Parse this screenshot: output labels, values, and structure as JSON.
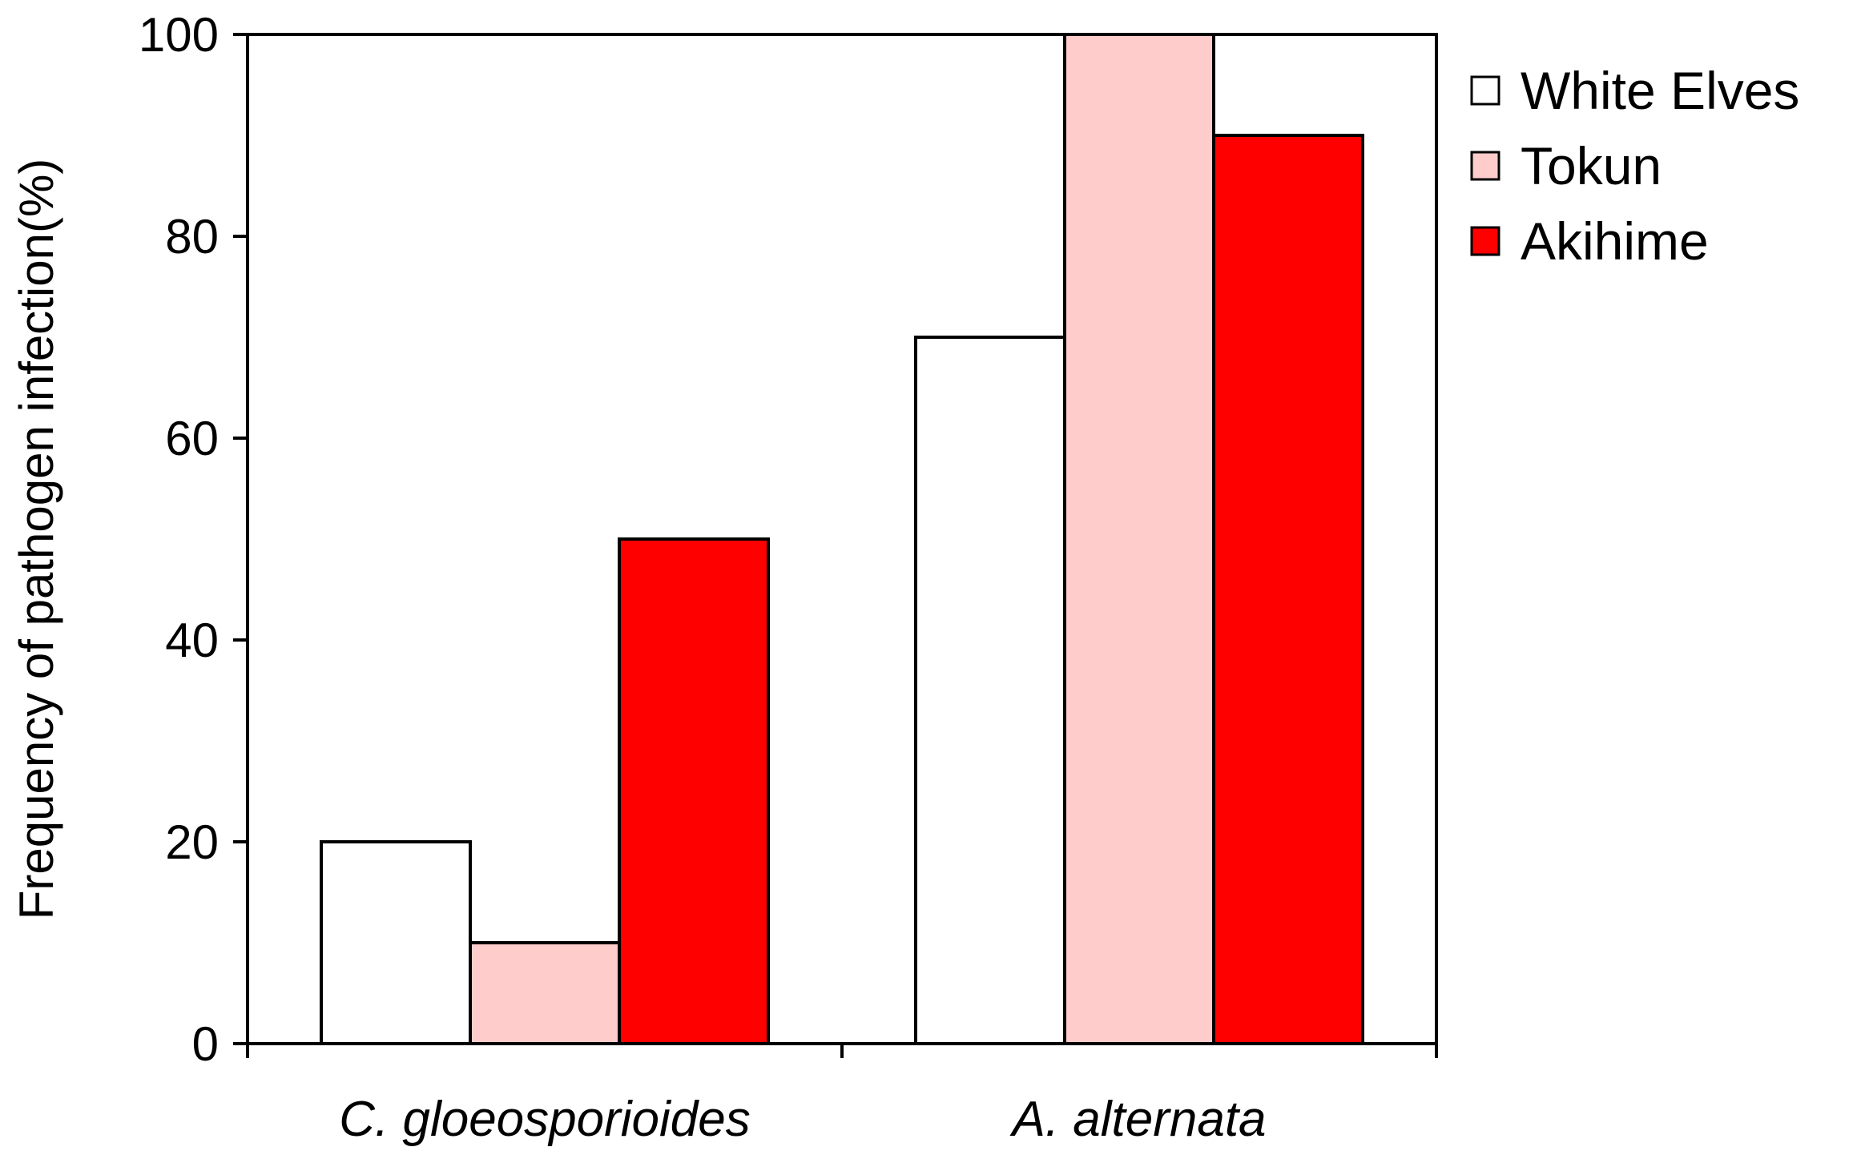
{
  "chart_data": {
    "type": "bar",
    "title": "",
    "xlabel": "",
    "ylabel": "Frequency of pathogen infection(%)",
    "ylim": [
      0,
      100
    ],
    "yticks": [
      "0",
      "20",
      "40",
      "60",
      "80",
      "100"
    ],
    "categories": [
      "C. gloeosporioides",
      "A. alternata"
    ],
    "series": [
      {
        "name": "White Elves",
        "color": "#ffffff",
        "values": [
          20,
          70
        ]
      },
      {
        "name": "Tokun",
        "color": "#ffcccc",
        "values": [
          10,
          100
        ]
      },
      {
        "name": "Akihime",
        "color": "#ff0000",
        "values": [
          50,
          90
        ]
      }
    ],
    "legend": "top-right (outside plot)",
    "grid": false
  }
}
